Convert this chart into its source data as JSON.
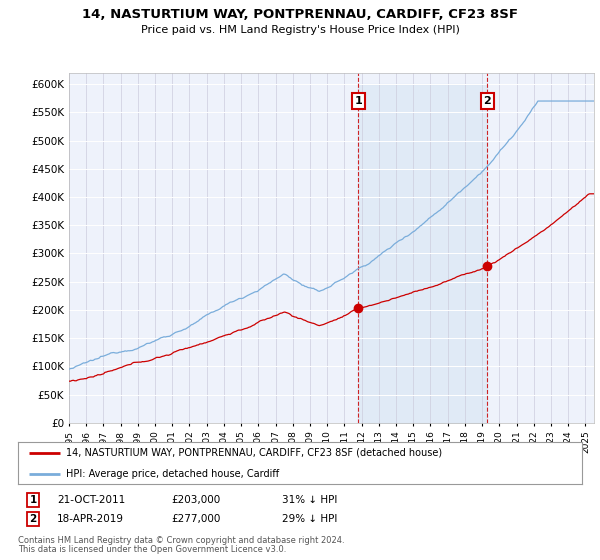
{
  "title": "14, NASTURTIUM WAY, PONTPRENNAU, CARDIFF, CF23 8SF",
  "subtitle": "Price paid vs. HM Land Registry's House Price Index (HPI)",
  "ylim": [
    0,
    600000
  ],
  "yticks": [
    0,
    50000,
    100000,
    150000,
    200000,
    250000,
    300000,
    350000,
    400000,
    450000,
    500000,
    550000,
    600000
  ],
  "ytick_labels": [
    "£0",
    "£50K",
    "£100K",
    "£150K",
    "£200K",
    "£250K",
    "£300K",
    "£350K",
    "£400K",
    "£450K",
    "£500K",
    "£550K",
    "£600K"
  ],
  "sale1_date": 2011.8,
  "sale1_price": 203000,
  "sale1_label": "21-OCT-2011",
  "sale1_amount": "£203,000",
  "sale1_hpi": "31% ↓ HPI",
  "sale2_date": 2019.3,
  "sale2_price": 277000,
  "sale2_label": "18-APR-2019",
  "sale2_amount": "£277,000",
  "sale2_hpi": "29% ↓ HPI",
  "legend_red": "14, NASTURTIUM WAY, PONTPRENNAU, CARDIFF, CF23 8SF (detached house)",
  "legend_blue": "HPI: Average price, detached house, Cardiff",
  "footer1": "Contains HM Land Registry data © Crown copyright and database right 2024.",
  "footer2": "This data is licensed under the Open Government Licence v3.0.",
  "background_color": "#eef2fb",
  "red_color": "#cc0000",
  "blue_color": "#7aaddb",
  "shade_color": "#dde8f5",
  "xlim_start": 1995,
  "xlim_end": 2025.5
}
